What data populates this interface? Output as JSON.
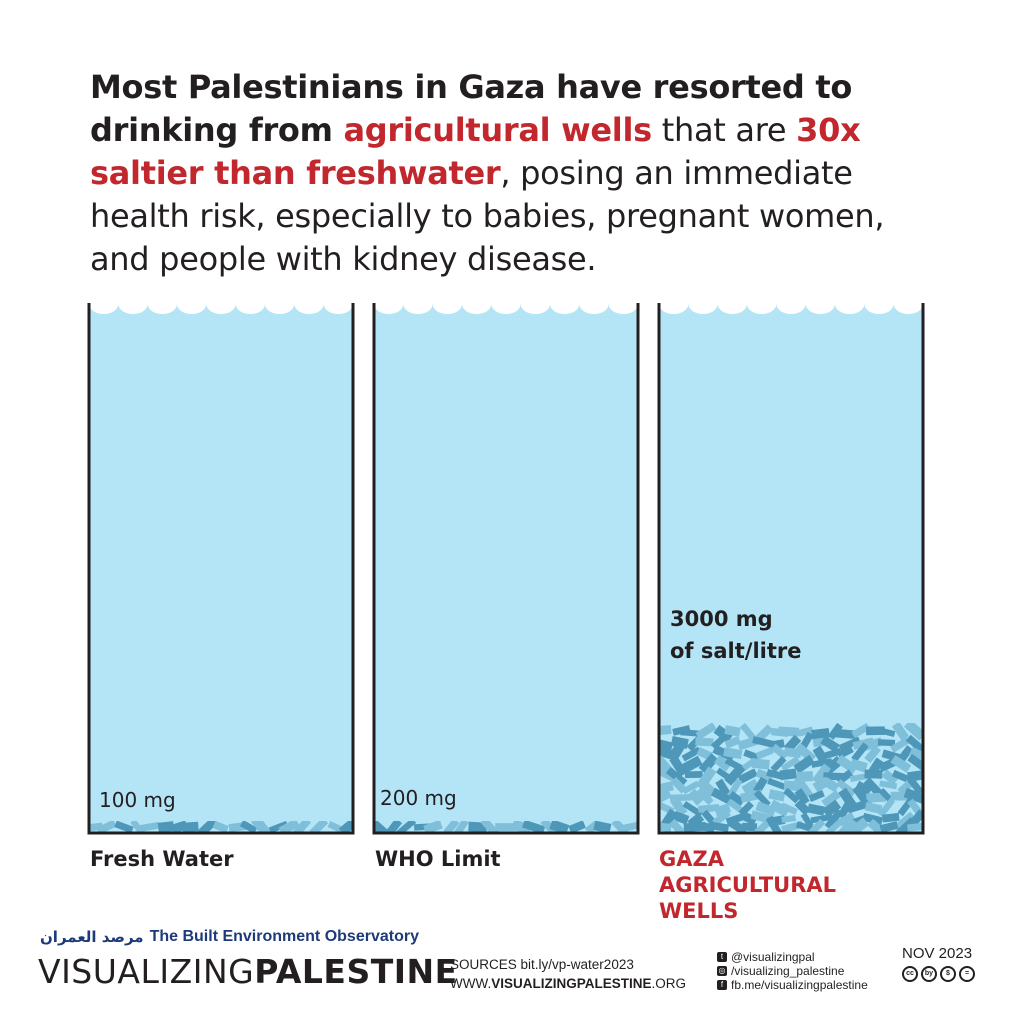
{
  "headline": {
    "part1": "Most Palestinians in Gaza have resorted to drinking from ",
    "highlight1": "agricultural wells",
    "part2": " that are ",
    "highlight2": "30x saltier than freshwater",
    "part3": ", posing an immediate health risk, especially to babies, pregnant women, and people with kidney disease."
  },
  "chart_data": {
    "type": "bar",
    "unit": "mg of salt/litre",
    "categories": [
      "Fresh Water",
      "WHO Limit",
      "GAZA AGRICULTURAL WELLS"
    ],
    "values": [
      100,
      200,
      3000
    ],
    "value_labels": [
      "100 mg",
      "200 mg",
      "3000 mg\nof salt/litre"
    ],
    "ylim": [
      0,
      15000
    ],
    "colors": {
      "water": "#b3e5f7",
      "salt": "#7fbfd9",
      "salt_dark": "#4e97b8",
      "outline": "#231f20",
      "highlight": "#c1272d"
    }
  },
  "footer": {
    "observatory_ar": "مرصد العمران",
    "observatory_en": "The Built Environment Observatory",
    "brand_light": "VISUALIZING",
    "brand_bold": "PALESTINE",
    "sources_label": "SOURCES",
    "sources_url": "bit.ly/vp-water2023",
    "site_prefix": "WWW.",
    "site_bold": "VISUALIZINGPALESTINE",
    "site_suffix": ".ORG",
    "twitter": "@visualizingpal",
    "instagram": "/visualizing_palestine",
    "facebook": "fb.me/visualizingpalestine",
    "date": "NOV 2023",
    "license": [
      "cc",
      "by",
      "$",
      "="
    ]
  }
}
